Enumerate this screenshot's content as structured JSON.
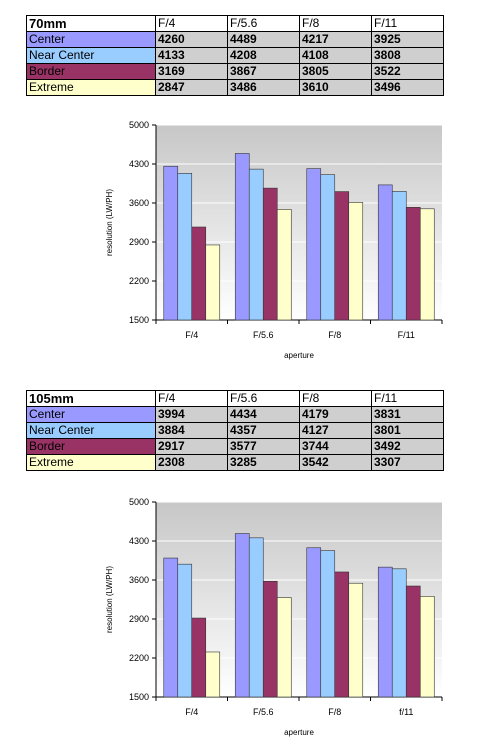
{
  "tables": [
    {
      "header": "70mm",
      "columns": [
        "F/4",
        "F/5.6",
        "F/8",
        "F/11"
      ],
      "rows": [
        {
          "label": "Center",
          "color": "#9999ff",
          "values": [
            "4260",
            "4489",
            "4217",
            "3925"
          ]
        },
        {
          "label": "Near Center",
          "color": "#99ccff",
          "values": [
            "4133",
            "4208",
            "4108",
            "3808"
          ]
        },
        {
          "label": "Border",
          "color": "#993366",
          "values": [
            "3169",
            "3867",
            "3805",
            "3522"
          ]
        },
        {
          "label": "Extreme",
          "color": "#ffffcc",
          "values": [
            "2847",
            "3486",
            "3610",
            "3496"
          ]
        }
      ]
    },
    {
      "header": "105mm",
      "columns": [
        "F/4",
        "F/5.6",
        "F/8",
        "F/11"
      ],
      "rows": [
        {
          "label": "Center",
          "color": "#9999ff",
          "values": [
            "3994",
            "4434",
            "4179",
            "3831"
          ]
        },
        {
          "label": "Near Center",
          "color": "#99ccff",
          "values": [
            "3884",
            "4357",
            "4127",
            "3801"
          ]
        },
        {
          "label": "Border",
          "color": "#993366",
          "values": [
            "2917",
            "3577",
            "3744",
            "3492"
          ]
        },
        {
          "label": "Extreme",
          "color": "#ffffcc",
          "values": [
            "2308",
            "3285",
            "3542",
            "3307"
          ]
        }
      ]
    }
  ],
  "chart_data": [
    {
      "type": "bar",
      "categories": [
        "F/4",
        "F/5.6",
        "F/8",
        "F/11"
      ],
      "series": [
        {
          "values": [
            4260,
            4489,
            4217,
            3925
          ],
          "color": "#9999ff"
        },
        {
          "values": [
            4133,
            4208,
            4108,
            3808
          ],
          "color": "#99ccff"
        },
        {
          "values": [
            3169,
            3867,
            3805,
            3522
          ],
          "color": "#993366"
        },
        {
          "values": [
            2847,
            3486,
            3610,
            3496
          ],
          "color": "#ffffcc"
        }
      ],
      "xlabel": "aperture",
      "ylabel": "resolution (LW/PH)",
      "ylim": [
        1500,
        5000
      ],
      "yticks": [
        "5000",
        "4300",
        "3600",
        "2900",
        "2200",
        "1500"
      ],
      "grid": true
    },
    {
      "type": "bar",
      "categories": [
        "F/4",
        "F/5.6",
        "F/8",
        "f/11"
      ],
      "series": [
        {
          "values": [
            3994,
            4434,
            4179,
            3831
          ],
          "color": "#9999ff"
        },
        {
          "values": [
            3884,
            4357,
            4127,
            3801
          ],
          "color": "#99ccff"
        },
        {
          "values": [
            2917,
            3577,
            3744,
            3492
          ],
          "color": "#993366"
        },
        {
          "values": [
            2308,
            3285,
            3542,
            3307
          ],
          "color": "#ffffcc"
        }
      ],
      "xlabel": "aperture",
      "ylabel": "resolution (LW/PH)",
      "ylim": [
        1500,
        5000
      ],
      "yticks": [
        "5000",
        "4300",
        "3600",
        "2900",
        "2200",
        "1500"
      ],
      "grid": true
    }
  ]
}
